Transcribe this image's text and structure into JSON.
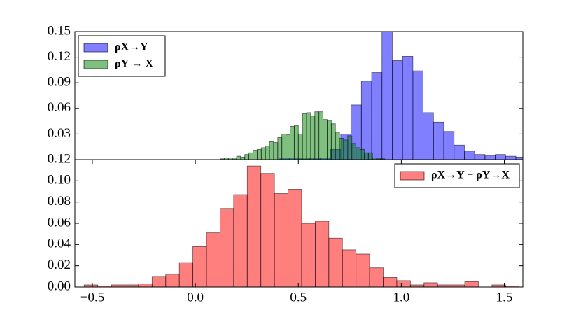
{
  "chart_data": [
    {
      "type": "histogram",
      "bins_by_series": true,
      "series": [
        {
          "name": "ρX→Y",
          "color": "#0000ff",
          "bins": [
            0.406,
            0.456,
            0.506,
            0.556,
            0.606,
            0.656,
            0.706,
            0.756,
            0.806,
            0.856,
            0.906,
            0.956,
            1.006,
            1.056,
            1.106,
            1.156,
            1.206,
            1.256,
            1.306,
            1.356,
            1.406,
            1.456,
            1.506,
            1.556,
            1.606
          ],
          "values": [
            0.002,
            0.002,
            0.001,
            0.002,
            0.002,
            0.012,
            0.03,
            0.064,
            0.092,
            0.102,
            0.15,
            0.116,
            0.121,
            0.104,
            0.055,
            0.044,
            0.033,
            0.017,
            0.01,
            0.006,
            0.005,
            0.006,
            0.004,
            0.003
          ]
        },
        {
          "name": "ρY → X",
          "color": "#008000",
          "bins": [
            0.12,
            0.14,
            0.16,
            0.18,
            0.2,
            0.22,
            0.24,
            0.26,
            0.28,
            0.3,
            0.32,
            0.34,
            0.36,
            0.38,
            0.4,
            0.42,
            0.44,
            0.46,
            0.48,
            0.5,
            0.52,
            0.54,
            0.56,
            0.58,
            0.6,
            0.62,
            0.64,
            0.66,
            0.68,
            0.7,
            0.72,
            0.74,
            0.76,
            0.78,
            0.8,
            0.82,
            0.84,
            0.86,
            0.88,
            0.9,
            0.92
          ],
          "values": [
            0.001,
            0.002,
            0.002,
            0.001,
            0.004,
            0.003,
            0.006,
            0.008,
            0.011,
            0.012,
            0.014,
            0.016,
            0.021,
            0.02,
            0.026,
            0.03,
            0.029,
            0.039,
            0.04,
            0.03,
            0.054,
            0.055,
            0.051,
            0.056,
            0.056,
            0.047,
            0.046,
            0.042,
            0.032,
            0.025,
            0.023,
            0.028,
            0.019,
            0.014,
            0.012,
            0.008,
            0.008,
            0.002,
            0.001,
            0.001
          ]
        }
      ],
      "xlim": [
        -0.585,
        1.59
      ],
      "ylim": [
        0,
        0.15
      ],
      "yticks": [
        0.03,
        0.06,
        0.09,
        0.12,
        0.15
      ],
      "legend": "upper left"
    },
    {
      "type": "histogram",
      "series": [
        {
          "name": "ρX→Y − ρY→X",
          "color": "#ff0000",
          "bins": [
            -0.54,
            -0.474,
            -0.408,
            -0.342,
            -0.276,
            -0.21,
            -0.144,
            -0.078,
            -0.012,
            0.054,
            0.12,
            0.186,
            0.252,
            0.318,
            0.384,
            0.45,
            0.516,
            0.582,
            0.648,
            0.714,
            0.78,
            0.846,
            0.912,
            0.978,
            1.044,
            1.11,
            1.176,
            1.242,
            1.308,
            1.374,
            1.44,
            1.506,
            1.572
          ],
          "values": [
            0.002,
            0.001,
            0.002,
            0.002,
            0.003,
            0.01,
            0.012,
            0.023,
            0.038,
            0.051,
            0.074,
            0.087,
            0.114,
            0.107,
            0.088,
            0.092,
            0.06,
            0.062,
            0.046,
            0.035,
            0.031,
            0.018,
            0.009,
            0.006,
            0.002,
            0.004,
            0.002,
            0.002,
            0.005,
            0,
            0.002,
            0.001
          ]
        }
      ],
      "xlim": [
        -0.585,
        1.59
      ],
      "xticks": [
        {
          "value": -0.5,
          "label": "−0.5"
        },
        {
          "value": 0,
          "label": "0.0"
        },
        0.5,
        {
          "value": 1,
          "label": "1.0"
        },
        1.5
      ],
      "ylim": [
        0,
        0.12
      ],
      "yticks": [
        {
          "value": 0,
          "label": "0.00"
        },
        0.02,
        0.04,
        0.06,
        0.08,
        {
          "value": 0.1,
          "label": "0.10"
        },
        0.12
      ],
      "legend": "upper right"
    }
  ]
}
